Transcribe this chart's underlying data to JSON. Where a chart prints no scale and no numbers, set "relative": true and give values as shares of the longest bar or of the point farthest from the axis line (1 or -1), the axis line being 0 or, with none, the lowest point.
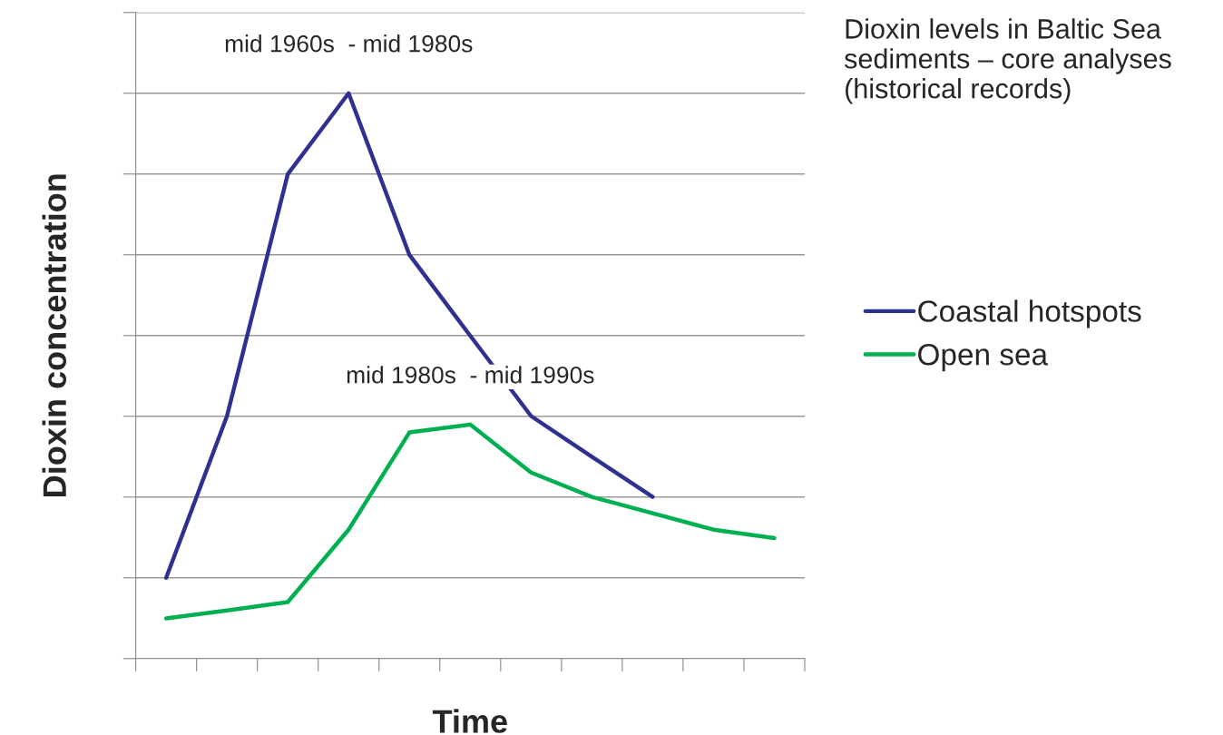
{
  "chart_data": {
    "type": "line",
    "title": "Dioxin levels in Baltic Sea sediments – core analyses (historical records)",
    "xlabel": "Time",
    "ylabel": "Dioxin concentration",
    "relative": true,
    "tick_labels": false,
    "grid": "y",
    "legend": "right",
    "categories": [
      null,
      null,
      null,
      null,
      null,
      null,
      null,
      null,
      null,
      null,
      null
    ],
    "series": [
      {
        "name": "Coastal hotspots",
        "color": "#2e3192",
        "values": [
          0.143,
          0.429,
          0.857,
          1,
          0.714,
          0.571,
          0.429,
          0.357,
          0.286,
          null,
          null
        ]
      },
      {
        "name": "Open sea",
        "color": "#00b050",
        "values": [
          0.071,
          0.085,
          0.1,
          0.228,
          0.4,
          0.414,
          0.329,
          0.286,
          0.257,
          0.228,
          0.213
        ]
      }
    ],
    "annotations": [
      "mid 1960s  - mid 1980s",
      "mid 1980s  - mid 1990s"
    ]
  }
}
